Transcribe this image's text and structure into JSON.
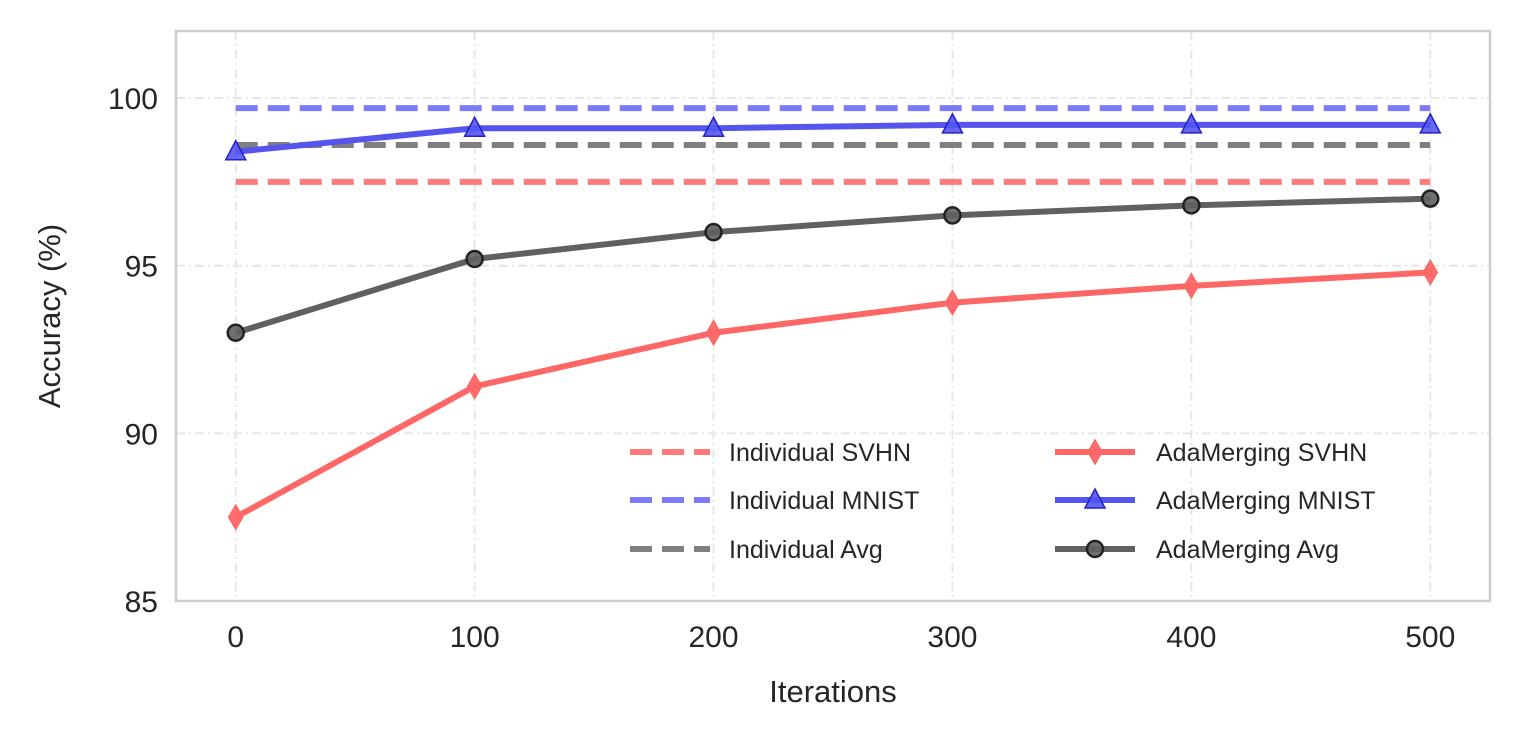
{
  "chart_data": {
    "type": "line",
    "title": "",
    "xlabel": "Iterations",
    "ylabel": "Accuracy (%)",
    "xlim": [
      -25,
      525
    ],
    "ylim": [
      85,
      102
    ],
    "xticks": [
      0,
      100,
      200,
      300,
      400,
      500
    ],
    "yticks": [
      85,
      90,
      95,
      100
    ],
    "grid": true,
    "legend_position": "lower-right",
    "x": [
      0,
      100,
      200,
      300,
      400,
      500
    ],
    "series": [
      {
        "name": "Individual SVHN",
        "style": "dashed",
        "marker": "none",
        "color": "#ff7b7b",
        "values": [
          97.5,
          97.5,
          97.5,
          97.5,
          97.5,
          97.5
        ]
      },
      {
        "name": "Individual MNIST",
        "style": "dashed",
        "marker": "none",
        "color": "#7b7bf7",
        "values": [
          99.7,
          99.7,
          99.7,
          99.7,
          99.7,
          99.7
        ]
      },
      {
        "name": "Individual Avg",
        "style": "dashed",
        "marker": "none",
        "color": "#808080",
        "values": [
          98.6,
          98.6,
          98.6,
          98.6,
          98.6,
          98.6
        ]
      },
      {
        "name": "AdaMerging SVHN",
        "style": "solid",
        "marker": "thin-diamond",
        "color": "#ff6666",
        "values": [
          87.5,
          91.4,
          93.0,
          93.9,
          94.4,
          94.8
        ]
      },
      {
        "name": "AdaMerging MNIST",
        "style": "solid",
        "marker": "triangle",
        "color": "#5555ee",
        "values": [
          98.4,
          99.1,
          99.1,
          99.2,
          99.2,
          99.2
        ]
      },
      {
        "name": "AdaMerging Avg",
        "style": "solid",
        "marker": "circle",
        "color": "#606060",
        "values": [
          93.0,
          95.2,
          96.0,
          96.5,
          96.8,
          97.0
        ]
      }
    ]
  }
}
